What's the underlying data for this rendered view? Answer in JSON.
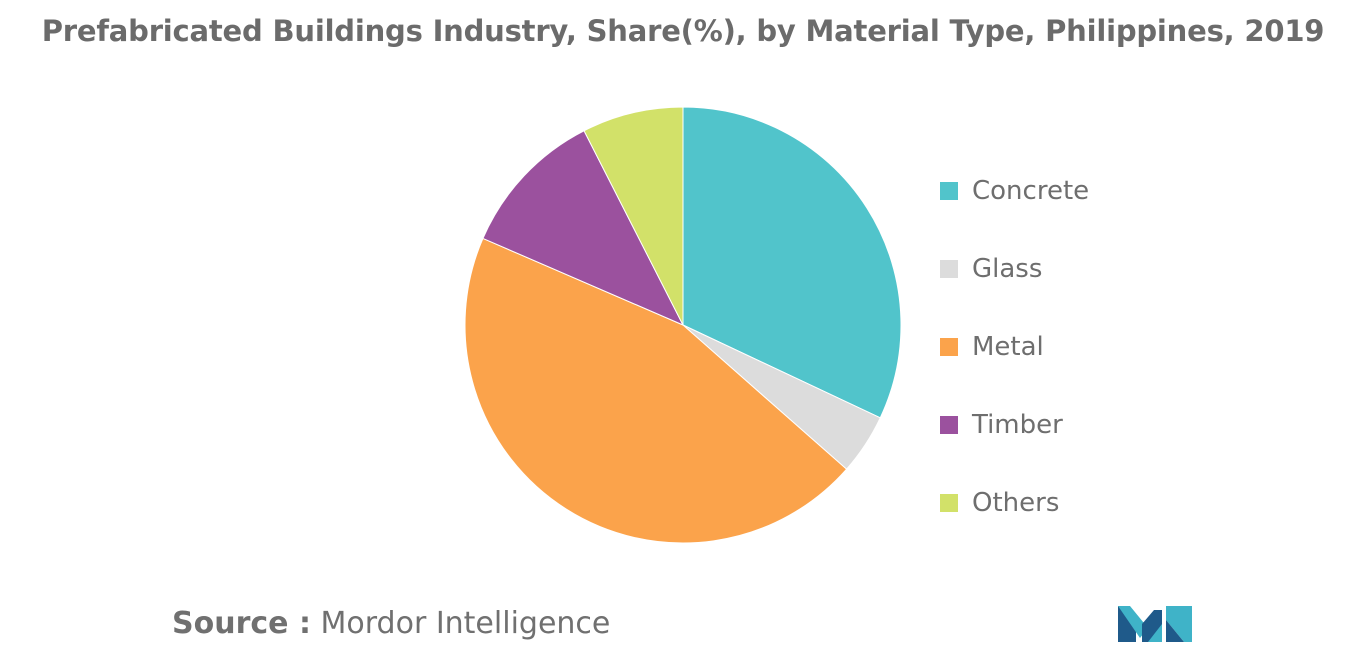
{
  "chart_data": {
    "type": "pie",
    "title": "Prefabricated Buildings Industry, Share(%), by Material Type, Philippines, 2019",
    "categories": [
      "Concrete",
      "Glass",
      "Metal",
      "Timber",
      "Others"
    ],
    "values": [
      32,
      4.5,
      45,
      11,
      7.5
    ],
    "colors": [
      "#51c4cb",
      "#dcdcdc",
      "#fba34b",
      "#9b519e",
      "#d2e169"
    ],
    "legend": "right",
    "start_angle_deg": 0,
    "direction": "clockwise"
  },
  "source": {
    "label": "Source :",
    "text": "Mordor Intelligence"
  },
  "logo": {
    "icon": "mordor-intelligence-logo-icon",
    "colors": [
      "#1f5a8a",
      "#3fb3c8"
    ]
  }
}
